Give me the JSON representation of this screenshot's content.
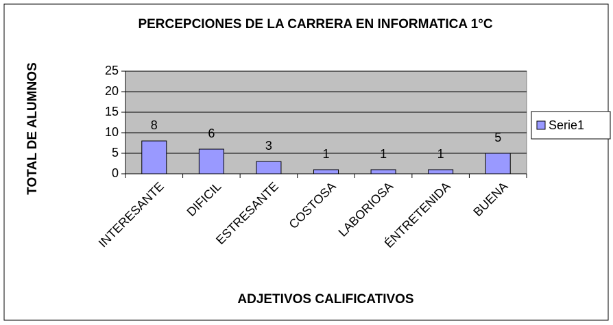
{
  "chart_data": {
    "type": "bar",
    "title": "PERCEPCIONES DE LA CARRERA EN INFORMATICA 1°C",
    "x_label": "ADJETIVOS CALIFICATIVOS",
    "y_label": "TOTAL DE ALUMNOS",
    "categories": [
      "INTERESANTE",
      "DIFICIL",
      "ESTRESANTE",
      "COSTOSA",
      "LABORIOSA",
      "ÉNTRETENIDA",
      "BUENA"
    ],
    "series": [
      {
        "name": "Serie1",
        "color": "#9999ff",
        "values": [
          8,
          6,
          3,
          1,
          1,
          1,
          5
        ]
      }
    ],
    "ylim": [
      0,
      25
    ],
    "yticks": [
      0,
      5,
      10,
      15,
      20,
      25
    ],
    "grid": true,
    "legend": "right"
  }
}
